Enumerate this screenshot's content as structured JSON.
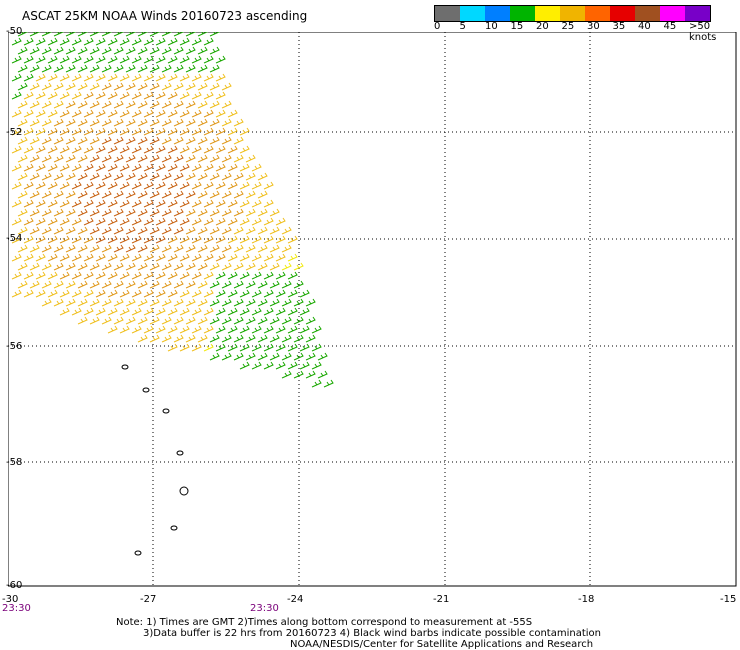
{
  "title": "ASCAT 25KM NOAA Winds 20160723 ascending",
  "colorbar": {
    "colors": [
      "#6e6e6e",
      "#00d8ff",
      "#007fff",
      "#00b400",
      "#ffee00",
      "#f0b400",
      "#ff6400",
      "#e60000",
      "#a05020",
      "#ff00ff",
      "#7800c8"
    ],
    "labels": [
      "0",
      "5",
      "10",
      "15",
      "20",
      "25",
      "30",
      "35",
      "40",
      "45",
      ">50 knots"
    ]
  },
  "axes": {
    "y_labels": [
      "-50",
      "-52",
      "-54",
      "-56",
      "-58",
      "-60"
    ],
    "x_labels": [
      "-30",
      "-27",
      "-24",
      "-21",
      "-18",
      "-15"
    ]
  },
  "times": [
    "23:30",
    "23:30"
  ],
  "notes": [
    "Note: 1) Times are GMT 2)Times along bottom correspond to measurement at -55S",
    "3)Data buffer is 22 hrs from 20160723 4) Black wind barbs indicate possible contamination",
    "NOAA/NESDIS/Center for Satellite Applications and Research"
  ]
}
